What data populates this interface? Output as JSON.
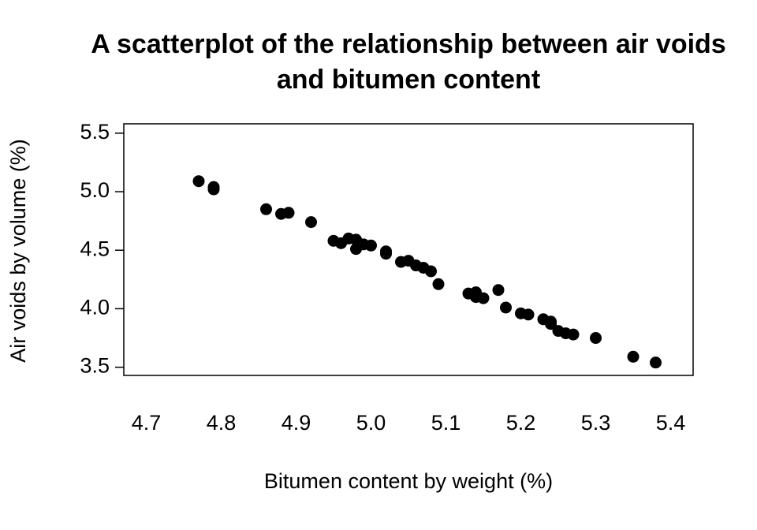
{
  "chart_data": {
    "type": "scatter",
    "title": [
      "A scatterplot of the relationship between air voids",
      "and bitumen content"
    ],
    "x_label": "Bitumen content by weight (%)",
    "y_label": "Air voids by volume (%)",
    "color": "#000000",
    "x": [
      4.77,
      4.79,
      4.79,
      4.86,
      4.88,
      4.89,
      4.92,
      4.95,
      4.96,
      4.97,
      4.98,
      4.98,
      4.99,
      5.0,
      5.02,
      5.02,
      5.04,
      5.05,
      5.06,
      5.07,
      5.08,
      5.09,
      5.13,
      5.14,
      5.14,
      5.15,
      5.17,
      5.18,
      5.2,
      5.21,
      5.23,
      5.24,
      5.24,
      5.25,
      5.26,
      5.27,
      5.3,
      5.35,
      5.38
    ],
    "values": [
      5.09,
      5.04,
      5.02,
      4.85,
      4.81,
      4.82,
      4.74,
      4.58,
      4.56,
      4.6,
      4.59,
      4.51,
      4.55,
      4.54,
      4.49,
      4.47,
      4.4,
      4.41,
      4.37,
      4.35,
      4.32,
      4.21,
      4.13,
      4.14,
      4.1,
      4.09,
      4.16,
      4.01,
      3.96,
      3.95,
      3.91,
      3.89,
      3.87,
      3.81,
      3.79,
      3.78,
      3.75,
      3.59,
      3.54
    ],
    "xlim": [
      4.67,
      5.43
    ],
    "ylim": [
      3.43,
      5.58
    ],
    "xticks": [
      4.7,
      4.8,
      4.9,
      {
        "value": 5.0,
        "label": "5.0"
      },
      5.1,
      5.2,
      5.3,
      5.4
    ],
    "yticks": [
      3.5,
      {
        "value": 4.0,
        "label": "4.0"
      },
      4.5,
      {
        "value": 5.0,
        "label": "5.0"
      },
      5.5
    ]
  }
}
